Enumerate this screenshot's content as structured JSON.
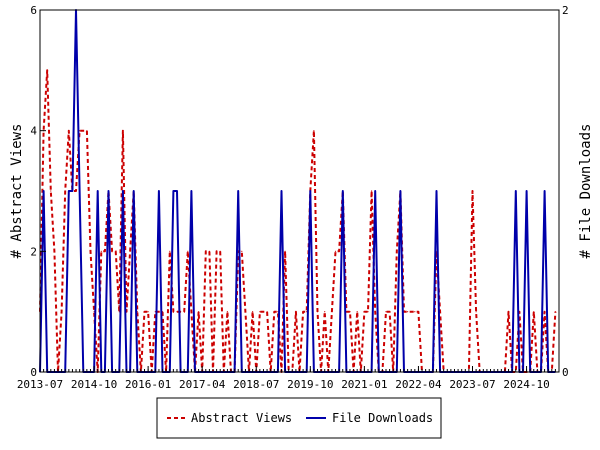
{
  "chart_data": {
    "type": "line",
    "title": "",
    "x_tick_labels": [
      "2013-07",
      "2014-10",
      "2016-01",
      "2017-04",
      "2018-07",
      "2019-10",
      "2021-01",
      "2022-04",
      "2023-07",
      "2024-10"
    ],
    "x_range": [
      "2013-07",
      "2025-07"
    ],
    "y_left": {
      "label": "# Abstract Views",
      "ylim": [
        0,
        6
      ],
      "ticks": [
        "0",
        "2",
        "4",
        "6"
      ]
    },
    "y_right": {
      "label": "# File Downloads",
      "ylim": [
        0,
        2
      ],
      "ticks": [
        "0",
        "2"
      ]
    },
    "grid": false,
    "legend_position": "bottom",
    "series": [
      {
        "name": "Abstract Views",
        "axis": "left",
        "color": "#cc0000",
        "dash": "dashed",
        "points": [
          [
            "2013-07",
            1
          ],
          [
            "2013-08",
            4
          ],
          [
            "2013-09",
            5
          ],
          [
            "2013-10",
            3
          ],
          [
            "2013-11",
            2
          ],
          [
            "2013-12",
            0
          ],
          [
            "2014-01",
            1
          ],
          [
            "2014-02",
            3
          ],
          [
            "2014-03",
            4
          ],
          [
            "2014-04",
            3
          ],
          [
            "2014-05",
            3
          ],
          [
            "2014-06",
            4
          ],
          [
            "2014-07",
            4
          ],
          [
            "2014-08",
            4
          ],
          [
            "2014-09",
            2
          ],
          [
            "2014-10",
            1
          ],
          [
            "2014-11",
            0
          ],
          [
            "2014-12",
            2
          ],
          [
            "2015-01",
            2
          ],
          [
            "2015-02",
            3
          ],
          [
            "2015-03",
            2
          ],
          [
            "2015-04",
            2
          ],
          [
            "2015-05",
            1
          ],
          [
            "2015-06",
            4
          ],
          [
            "2015-07",
            1
          ],
          [
            "2015-08",
            2
          ],
          [
            "2015-09",
            3
          ],
          [
            "2015-10",
            1
          ],
          [
            "2015-11",
            0
          ],
          [
            "2015-12",
            1
          ],
          [
            "2016-01",
            1
          ],
          [
            "2016-02",
            0
          ],
          [
            "2016-03",
            1
          ],
          [
            "2016-04",
            1
          ],
          [
            "2016-05",
            1
          ],
          [
            "2016-06",
            0
          ],
          [
            "2016-07",
            2
          ],
          [
            "2016-08",
            1
          ],
          [
            "2016-09",
            1
          ],
          [
            "2016-10",
            1
          ],
          [
            "2016-11",
            1
          ],
          [
            "2016-12",
            2
          ],
          [
            "2017-01",
            1
          ],
          [
            "2017-02",
            0
          ],
          [
            "2017-03",
            1
          ],
          [
            "2017-04",
            0
          ],
          [
            "2017-05",
            2
          ],
          [
            "2017-06",
            2
          ],
          [
            "2017-07",
            0
          ],
          [
            "2017-08",
            2
          ],
          [
            "2017-09",
            2
          ],
          [
            "2017-10",
            0
          ],
          [
            "2017-11",
            1
          ],
          [
            "2017-12",
            0
          ],
          [
            "2018-01",
            0
          ],
          [
            "2018-02",
            2
          ],
          [
            "2018-03",
            2
          ],
          [
            "2018-04",
            1
          ],
          [
            "2018-05",
            0
          ],
          [
            "2018-06",
            1
          ],
          [
            "2018-07",
            0
          ],
          [
            "2018-08",
            1
          ],
          [
            "2018-09",
            1
          ],
          [
            "2018-10",
            1
          ],
          [
            "2018-11",
            0
          ],
          [
            "2018-12",
            1
          ],
          [
            "2019-01",
            1
          ],
          [
            "2019-02",
            0
          ],
          [
            "2019-03",
            2
          ],
          [
            "2019-04",
            0
          ],
          [
            "2019-05",
            0
          ],
          [
            "2019-06",
            1
          ],
          [
            "2019-07",
            0
          ],
          [
            "2019-08",
            1
          ],
          [
            "2019-09",
            1
          ],
          [
            "2019-10",
            3
          ],
          [
            "2019-11",
            4
          ],
          [
            "2019-12",
            1
          ],
          [
            "2020-01",
            0
          ],
          [
            "2020-02",
            1
          ],
          [
            "2020-03",
            0
          ],
          [
            "2020-04",
            1
          ],
          [
            "2020-05",
            2
          ],
          [
            "2020-06",
            2
          ],
          [
            "2020-07",
            3
          ],
          [
            "2020-08",
            1
          ],
          [
            "2020-09",
            1
          ],
          [
            "2020-10",
            0
          ],
          [
            "2020-11",
            1
          ],
          [
            "2020-12",
            0
          ],
          [
            "2021-01",
            1
          ],
          [
            "2021-02",
            1
          ],
          [
            "2021-03",
            3
          ],
          [
            "2021-04",
            1
          ],
          [
            "2021-05",
            0
          ],
          [
            "2021-06",
            0
          ],
          [
            "2021-07",
            1
          ],
          [
            "2021-08",
            1
          ],
          [
            "2021-09",
            0
          ],
          [
            "2021-10",
            2
          ],
          [
            "2021-11",
            3
          ],
          [
            "2021-12",
            1
          ],
          [
            "2022-01",
            1
          ],
          [
            "2022-02",
            1
          ],
          [
            "2022-03",
            1
          ],
          [
            "2022-04",
            1
          ],
          [
            "2022-05",
            0
          ],
          [
            "2022-06",
            0
          ],
          [
            "2022-07",
            0
          ],
          [
            "2022-08",
            0
          ],
          [
            "2022-09",
            2
          ],
          [
            "2022-10",
            1
          ],
          [
            "2022-11",
            0
          ],
          [
            "2022-12",
            0
          ],
          [
            "2023-01",
            0
          ],
          [
            "2023-02",
            0
          ],
          [
            "2023-03",
            0
          ],
          [
            "2023-04",
            0
          ],
          [
            "2023-05",
            0
          ],
          [
            "2023-06",
            0
          ],
          [
            "2023-07",
            3
          ],
          [
            "2023-08",
            1
          ],
          [
            "2023-09",
            0
          ],
          [
            "2023-10",
            0
          ],
          [
            "2023-11",
            0
          ],
          [
            "2023-12",
            0
          ],
          [
            "2024-01",
            0
          ],
          [
            "2024-02",
            0
          ],
          [
            "2024-03",
            0
          ],
          [
            "2024-04",
            0
          ],
          [
            "2024-05",
            1
          ],
          [
            "2024-06",
            0
          ],
          [
            "2024-07",
            0
          ],
          [
            "2024-08",
            1
          ],
          [
            "2024-09",
            0
          ],
          [
            "2024-10",
            0
          ],
          [
            "2024-11",
            0
          ],
          [
            "2024-12",
            1
          ],
          [
            "2025-01",
            0
          ],
          [
            "2025-02",
            0
          ],
          [
            "2025-03",
            1
          ],
          [
            "2025-04",
            0
          ],
          [
            "2025-05",
            0
          ],
          [
            "2025-06",
            1
          ]
        ]
      },
      {
        "name": "File Downloads",
        "axis": "right",
        "color": "#0000aa",
        "dash": "solid",
        "points": [
          [
            "2013-07",
            0
          ],
          [
            "2013-08",
            1
          ],
          [
            "2013-09",
            0
          ],
          [
            "2013-10",
            0
          ],
          [
            "2013-11",
            0
          ],
          [
            "2013-12",
            0
          ],
          [
            "2014-01",
            0
          ],
          [
            "2014-02",
            0
          ],
          [
            "2014-03",
            1
          ],
          [
            "2014-04",
            1
          ],
          [
            "2014-05",
            2
          ],
          [
            "2014-06",
            1
          ],
          [
            "2014-07",
            0
          ],
          [
            "2014-08",
            0
          ],
          [
            "2014-09",
            0
          ],
          [
            "2014-10",
            0
          ],
          [
            "2014-11",
            1
          ],
          [
            "2014-12",
            0
          ],
          [
            "2015-01",
            0
          ],
          [
            "2015-02",
            1
          ],
          [
            "2015-03",
            0
          ],
          [
            "2015-04",
            0
          ],
          [
            "2015-05",
            0
          ],
          [
            "2015-06",
            1
          ],
          [
            "2015-07",
            0
          ],
          [
            "2015-08",
            0
          ],
          [
            "2015-09",
            1
          ],
          [
            "2015-10",
            0
          ],
          [
            "2015-11",
            0
          ],
          [
            "2015-12",
            0
          ],
          [
            "2016-01",
            0
          ],
          [
            "2016-02",
            0
          ],
          [
            "2016-03",
            0
          ],
          [
            "2016-04",
            1
          ],
          [
            "2016-05",
            0
          ],
          [
            "2016-06",
            0
          ],
          [
            "2016-07",
            0
          ],
          [
            "2016-08",
            1
          ],
          [
            "2016-09",
            1
          ],
          [
            "2016-10",
            0
          ],
          [
            "2016-11",
            0
          ],
          [
            "2016-12",
            0
          ],
          [
            "2017-01",
            1
          ],
          [
            "2017-02",
            0
          ],
          [
            "2017-03",
            0
          ],
          [
            "2017-04",
            0
          ],
          [
            "2017-05",
            0
          ],
          [
            "2017-06",
            0
          ],
          [
            "2017-07",
            0
          ],
          [
            "2017-08",
            0
          ],
          [
            "2017-09",
            0
          ],
          [
            "2017-10",
            0
          ],
          [
            "2017-11",
            0
          ],
          [
            "2017-12",
            0
          ],
          [
            "2018-01",
            0
          ],
          [
            "2018-02",
            1
          ],
          [
            "2018-03",
            0
          ],
          [
            "2018-04",
            0
          ],
          [
            "2018-05",
            0
          ],
          [
            "2018-06",
            0
          ],
          [
            "2018-07",
            0
          ],
          [
            "2018-08",
            0
          ],
          [
            "2018-09",
            0
          ],
          [
            "2018-10",
            0
          ],
          [
            "2018-11",
            0
          ],
          [
            "2018-12",
            0
          ],
          [
            "2019-01",
            0
          ],
          [
            "2019-02",
            1
          ],
          [
            "2019-03",
            0
          ],
          [
            "2019-04",
            0
          ],
          [
            "2019-05",
            0
          ],
          [
            "2019-06",
            0
          ],
          [
            "2019-07",
            0
          ],
          [
            "2019-08",
            0
          ],
          [
            "2019-09",
            0
          ],
          [
            "2019-10",
            1
          ],
          [
            "2019-11",
            0
          ],
          [
            "2019-12",
            0
          ],
          [
            "2020-01",
            0
          ],
          [
            "2020-02",
            0
          ],
          [
            "2020-03",
            0
          ],
          [
            "2020-04",
            0
          ],
          [
            "2020-05",
            0
          ],
          [
            "2020-06",
            0
          ],
          [
            "2020-07",
            1
          ],
          [
            "2020-08",
            0
          ],
          [
            "2020-09",
            0
          ],
          [
            "2020-10",
            0
          ],
          [
            "2020-11",
            0
          ],
          [
            "2020-12",
            0
          ],
          [
            "2021-01",
            0
          ],
          [
            "2021-02",
            0
          ],
          [
            "2021-03",
            0
          ],
          [
            "2021-04",
            1
          ],
          [
            "2021-05",
            0
          ],
          [
            "2021-06",
            0
          ],
          [
            "2021-07",
            0
          ],
          [
            "2021-08",
            0
          ],
          [
            "2021-09",
            0
          ],
          [
            "2021-10",
            0
          ],
          [
            "2021-11",
            1
          ],
          [
            "2021-12",
            0
          ],
          [
            "2022-01",
            0
          ],
          [
            "2022-02",
            0
          ],
          [
            "2022-03",
            0
          ],
          [
            "2022-04",
            0
          ],
          [
            "2022-05",
            0
          ],
          [
            "2022-06",
            0
          ],
          [
            "2022-07",
            0
          ],
          [
            "2022-08",
            0
          ],
          [
            "2022-09",
            1
          ],
          [
            "2022-10",
            0
          ],
          [
            "2022-11",
            0
          ],
          [
            "2022-12",
            0
          ],
          [
            "2023-01",
            0
          ],
          [
            "2023-02",
            0
          ],
          [
            "2023-03",
            0
          ],
          [
            "2023-04",
            0
          ],
          [
            "2023-05",
            0
          ],
          [
            "2023-06",
            0
          ],
          [
            "2023-07",
            0
          ],
          [
            "2023-08",
            0
          ],
          [
            "2023-09",
            0
          ],
          [
            "2023-10",
            0
          ],
          [
            "2023-11",
            0
          ],
          [
            "2023-12",
            0
          ],
          [
            "2024-01",
            0
          ],
          [
            "2024-02",
            0
          ],
          [
            "2024-03",
            0
          ],
          [
            "2024-04",
            0
          ],
          [
            "2024-05",
            0
          ],
          [
            "2024-06",
            0
          ],
          [
            "2024-07",
            1
          ],
          [
            "2024-08",
            0
          ],
          [
            "2024-09",
            0
          ],
          [
            "2024-10",
            1
          ],
          [
            "2024-11",
            0
          ],
          [
            "2024-12",
            0
          ],
          [
            "2025-01",
            0
          ],
          [
            "2025-02",
            0
          ],
          [
            "2025-03",
            1
          ],
          [
            "2025-04",
            0
          ],
          [
            "2025-05",
            0
          ],
          [
            "2025-06",
            0
          ]
        ]
      }
    ]
  }
}
